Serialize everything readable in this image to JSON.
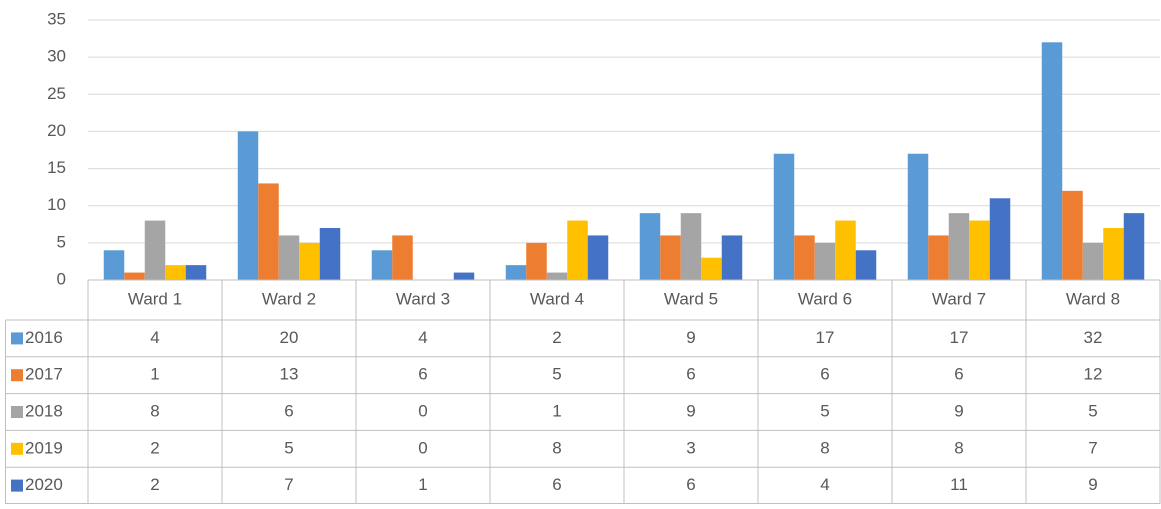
{
  "chart_data": {
    "type": "bar",
    "categories": [
      "Ward 1",
      "Ward 2",
      "Ward 3",
      "Ward 4",
      "Ward 5",
      "Ward 6",
      "Ward 7",
      "Ward 8"
    ],
    "series": [
      {
        "name": "2016",
        "color": "#5b9bd5",
        "values": [
          4,
          20,
          4,
          2,
          9,
          17,
          17,
          32
        ]
      },
      {
        "name": "2017",
        "color": "#ed7d31",
        "values": [
          1,
          13,
          6,
          5,
          6,
          6,
          6,
          12
        ]
      },
      {
        "name": "2018",
        "color": "#a5a5a5",
        "values": [
          8,
          6,
          0,
          1,
          9,
          5,
          9,
          5
        ]
      },
      {
        "name": "2019",
        "color": "#ffc000",
        "values": [
          2,
          5,
          0,
          8,
          3,
          8,
          8,
          7
        ]
      },
      {
        "name": "2020",
        "color": "#4472c4",
        "values": [
          2,
          7,
          1,
          6,
          6,
          4,
          11,
          9
        ]
      }
    ],
    "ylim": [
      0,
      35
    ],
    "yticks": [
      0,
      5,
      10,
      15,
      20,
      25,
      30,
      35
    ],
    "grid": true
  }
}
